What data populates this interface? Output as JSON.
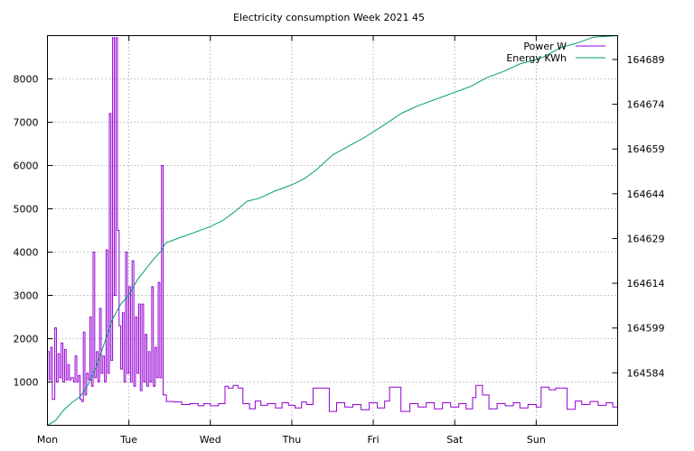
{
  "chart_data": {
    "type": "line",
    "title": "Electricity consumption Week 2021 45",
    "x_tick_labels": [
      "Mon",
      "Tue",
      "Wed",
      "Thu",
      "Fri",
      "Sat",
      "Sun"
    ],
    "x_unit": "days since Mon 00:00",
    "xlim": [
      0,
      7
    ],
    "y_left_ticks": [
      1000,
      2000,
      3000,
      4000,
      5000,
      6000,
      7000,
      8000
    ],
    "ylim_left": [
      0,
      9000
    ],
    "y_right_ticks": [
      164584,
      164599,
      164614,
      164629,
      164644,
      164659,
      164674,
      164689
    ],
    "ylim_right": [
      164566.4,
      164697
    ],
    "grid": true,
    "legend_position": "top-right",
    "series": [
      {
        "name": "Power W",
        "axis": "left",
        "color": "#9400d3",
        "style": "steps",
        "points": [
          [
            0.0,
            1700
          ],
          [
            0.02,
            1050
          ],
          [
            0.04,
            1800
          ],
          [
            0.06,
            600
          ],
          [
            0.09,
            2250
          ],
          [
            0.11,
            1000
          ],
          [
            0.13,
            1650
          ],
          [
            0.15,
            1100
          ],
          [
            0.17,
            1900
          ],
          [
            0.19,
            1000
          ],
          [
            0.21,
            1750
          ],
          [
            0.23,
            1050
          ],
          [
            0.25,
            1400
          ],
          [
            0.27,
            1050
          ],
          [
            0.29,
            1100
          ],
          [
            0.32,
            1000
          ],
          [
            0.34,
            1600
          ],
          [
            0.36,
            1000
          ],
          [
            0.38,
            1150
          ],
          [
            0.4,
            600
          ],
          [
            0.42,
            550
          ],
          [
            0.44,
            2150
          ],
          [
            0.46,
            700
          ],
          [
            0.48,
            1200
          ],
          [
            0.5,
            1050
          ],
          [
            0.52,
            2500
          ],
          [
            0.54,
            900
          ],
          [
            0.56,
            4000
          ],
          [
            0.58,
            1100
          ],
          [
            0.6,
            1700
          ],
          [
            0.62,
            1000
          ],
          [
            0.64,
            2700
          ],
          [
            0.66,
            1200
          ],
          [
            0.68,
            1600
          ],
          [
            0.7,
            1000
          ],
          [
            0.72,
            4050
          ],
          [
            0.74,
            1200
          ],
          [
            0.76,
            7200
          ],
          [
            0.78,
            1500
          ],
          [
            0.8,
            8950
          ],
          [
            0.82,
            3000
          ],
          [
            0.84,
            8950
          ],
          [
            0.86,
            4500
          ],
          [
            0.88,
            2300
          ],
          [
            0.9,
            1300
          ],
          [
            0.92,
            2600
          ],
          [
            0.94,
            1000
          ],
          [
            0.96,
            4000
          ],
          [
            0.98,
            1200
          ],
          [
            1.0,
            3200
          ],
          [
            1.02,
            1000
          ],
          [
            1.04,
            3800
          ],
          [
            1.06,
            900
          ],
          [
            1.08,
            2500
          ],
          [
            1.1,
            1200
          ],
          [
            1.12,
            2800
          ],
          [
            1.14,
            800
          ],
          [
            1.16,
            2800
          ],
          [
            1.18,
            1000
          ],
          [
            1.2,
            2100
          ],
          [
            1.22,
            900
          ],
          [
            1.24,
            1700
          ],
          [
            1.26,
            1000
          ],
          [
            1.28,
            3200
          ],
          [
            1.3,
            900
          ],
          [
            1.32,
            1800
          ],
          [
            1.34,
            1100
          ],
          [
            1.36,
            3300
          ],
          [
            1.38,
            1100
          ],
          [
            1.4,
            6000
          ],
          [
            1.42,
            700
          ],
          [
            1.46,
            550
          ],
          [
            1.55,
            540
          ],
          [
            1.65,
            480
          ],
          [
            1.75,
            500
          ],
          [
            1.85,
            450
          ],
          [
            1.92,
            500
          ],
          [
            2.0,
            450
          ],
          [
            2.1,
            500
          ],
          [
            2.18,
            900
          ],
          [
            2.22,
            860
          ],
          [
            2.28,
            920
          ],
          [
            2.34,
            860
          ],
          [
            2.4,
            500
          ],
          [
            2.48,
            380
          ],
          [
            2.55,
            560
          ],
          [
            2.62,
            460
          ],
          [
            2.7,
            500
          ],
          [
            2.8,
            400
          ],
          [
            2.88,
            520
          ],
          [
            2.96,
            460
          ],
          [
            3.04,
            400
          ],
          [
            3.12,
            540
          ],
          [
            3.18,
            480
          ],
          [
            3.26,
            860
          ],
          [
            3.46,
            320
          ],
          [
            3.55,
            520
          ],
          [
            3.65,
            420
          ],
          [
            3.75,
            480
          ],
          [
            3.85,
            360
          ],
          [
            3.95,
            520
          ],
          [
            4.05,
            400
          ],
          [
            4.14,
            560
          ],
          [
            4.2,
            880
          ],
          [
            4.34,
            320
          ],
          [
            4.45,
            500
          ],
          [
            4.55,
            420
          ],
          [
            4.65,
            520
          ],
          [
            4.75,
            380
          ],
          [
            4.85,
            520
          ],
          [
            4.95,
            420
          ],
          [
            5.05,
            500
          ],
          [
            5.14,
            380
          ],
          [
            5.22,
            640
          ],
          [
            5.26,
            920
          ],
          [
            5.34,
            700
          ],
          [
            5.42,
            380
          ],
          [
            5.52,
            500
          ],
          [
            5.62,
            450
          ],
          [
            5.72,
            520
          ],
          [
            5.8,
            400
          ],
          [
            5.9,
            480
          ],
          [
            6.0,
            420
          ],
          [
            6.06,
            880
          ],
          [
            6.16,
            820
          ],
          [
            6.24,
            860
          ],
          [
            6.38,
            370
          ],
          [
            6.48,
            560
          ],
          [
            6.56,
            480
          ],
          [
            6.66,
            550
          ],
          [
            6.76,
            460
          ],
          [
            6.86,
            520
          ],
          [
            6.94,
            420
          ],
          [
            7.0,
            400
          ]
        ]
      },
      {
        "name": "Energy KWh",
        "axis": "right",
        "color": "#009e73",
        "style": "line",
        "points": [
          [
            0.0,
            164566.4
          ],
          [
            0.1,
            164568.0
          ],
          [
            0.2,
            164571.5
          ],
          [
            0.3,
            164574.0
          ],
          [
            0.4,
            164576.0
          ],
          [
            0.5,
            164580.0
          ],
          [
            0.6,
            164586.0
          ],
          [
            0.7,
            164594.0
          ],
          [
            0.8,
            164602.0
          ],
          [
            0.9,
            164607.0
          ],
          [
            1.0,
            164610.0
          ],
          [
            1.1,
            164615.0
          ],
          [
            1.2,
            164618.5
          ],
          [
            1.3,
            164622.0
          ],
          [
            1.4,
            164625.0
          ],
          [
            1.45,
            164627.5
          ],
          [
            1.6,
            164629.0
          ],
          [
            1.8,
            164631.0
          ],
          [
            2.0,
            164633.0
          ],
          [
            2.15,
            164635.0
          ],
          [
            2.3,
            164638.0
          ],
          [
            2.45,
            164641.5
          ],
          [
            2.6,
            164642.5
          ],
          [
            2.8,
            164645.0
          ],
          [
            3.0,
            164647.0
          ],
          [
            3.15,
            164649.0
          ],
          [
            3.3,
            164652.0
          ],
          [
            3.5,
            164657.0
          ],
          [
            3.7,
            164660.0
          ],
          [
            3.9,
            164663.0
          ],
          [
            4.1,
            164666.5
          ],
          [
            4.35,
            164671.0
          ],
          [
            4.55,
            164673.5
          ],
          [
            4.75,
            164675.5
          ],
          [
            5.0,
            164678.0
          ],
          [
            5.2,
            164680.0
          ],
          [
            5.4,
            164683.0
          ],
          [
            5.6,
            164685.0
          ],
          [
            5.8,
            164687.5
          ],
          [
            6.0,
            164689.0
          ],
          [
            6.1,
            164690.0
          ],
          [
            6.3,
            164693.0
          ],
          [
            6.5,
            164694.5
          ],
          [
            6.7,
            164696.5
          ],
          [
            7.0,
            164697.0
          ]
        ]
      }
    ]
  }
}
